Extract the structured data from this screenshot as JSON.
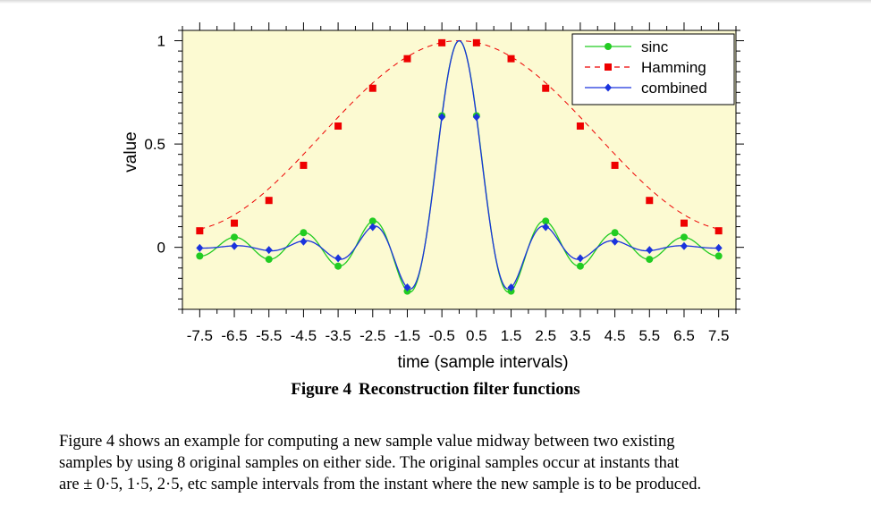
{
  "figure": {
    "number_label": "Figure 4",
    "caption_label": "Reconstruction filter functions"
  },
  "paragraph": {
    "lines": [
      "Figure 4 shows an example for computing a new sample value midway between two existing",
      "samples by using 8 original samples on either side. The original samples occur at instants that",
      "are ± 0·5, 1·5, 2·5, etc sample intervals from the instant where the new sample is to be produced."
    ]
  },
  "colors": {
    "plot_background": "#fcfad2",
    "sinc": "#22cc22",
    "hamming": "#ee0000",
    "combined": "#1a33dd"
  },
  "chart_data": {
    "type": "line",
    "xlabel": "time (sample intervals)",
    "ylabel": "value",
    "xlim": [
      -8,
      8
    ],
    "ylim": [
      -0.3,
      1.05
    ],
    "x_tick_labels": [
      "-7.5",
      "-6.5",
      "-5.5",
      "-4.5",
      "-3.5",
      "-2.5",
      "-1.5",
      "-0.5",
      "0.5",
      "1.5",
      "2.5",
      "3.5",
      "4.5",
      "5.5",
      "6.5",
      "7.5"
    ],
    "y_ticks": [
      0,
      0.5,
      1
    ],
    "y_tick_labels": [
      "0",
      "0.5",
      "1"
    ],
    "legend_position": "top-right",
    "x": [
      -7.5,
      -6.5,
      -5.5,
      -4.5,
      -3.5,
      -2.5,
      -1.5,
      -0.5,
      0.5,
      1.5,
      2.5,
      3.5,
      4.5,
      5.5,
      6.5,
      7.5
    ],
    "series": [
      {
        "name": "sinc",
        "style": "solid-circle",
        "values": [
          -0.042,
          0.049,
          -0.058,
          0.071,
          -0.091,
          0.127,
          -0.212,
          0.637,
          0.637,
          -0.212,
          0.127,
          -0.091,
          0.071,
          -0.058,
          0.049,
          -0.042
        ]
      },
      {
        "name": "Hamming",
        "style": "dashed-square",
        "values": [
          0.08,
          0.117,
          0.227,
          0.397,
          0.587,
          0.77,
          0.913,
          0.99,
          0.99,
          0.913,
          0.77,
          0.587,
          0.397,
          0.227,
          0.117,
          0.08
        ]
      },
      {
        "name": "combined",
        "style": "solid-diamond",
        "values": [
          -0.003,
          0.006,
          -0.013,
          0.028,
          -0.053,
          0.098,
          -0.194,
          0.631,
          0.631,
          -0.194,
          0.098,
          -0.053,
          0.028,
          -0.013,
          0.006,
          -0.003
        ]
      }
    ]
  }
}
